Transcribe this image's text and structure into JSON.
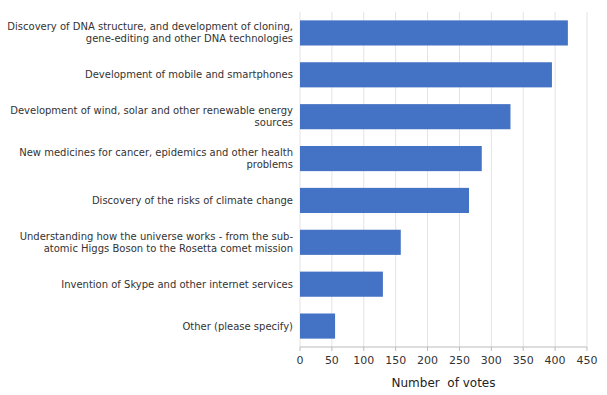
{
  "chart_data": {
    "type": "bar",
    "orientation": "horizontal",
    "categories": [
      "Discovery of DNA structure, and development of cloning,\ngene-editing and other DNA technologies",
      "Development of mobile and smartphones",
      "Development of wind, solar and other renewable energy\nsources",
      "New medicines for cancer, epidemics and other health\nproblems",
      "Discovery of the risks of climate change",
      "Understanding how the universe works - from the sub-\natomic Higgs Boson to the Rosetta comet mission",
      "Invention of Skype and other internet services",
      "Other (please specify)"
    ],
    "values": [
      420,
      395,
      330,
      285,
      265,
      158,
      130,
      55
    ],
    "color": "#4472c4",
    "xlabel": "Number  of votes",
    "xlim": [
      0,
      450
    ],
    "xticks": [
      0,
      50,
      100,
      150,
      200,
      250,
      300,
      350,
      400,
      450
    ],
    "grid": true
  }
}
